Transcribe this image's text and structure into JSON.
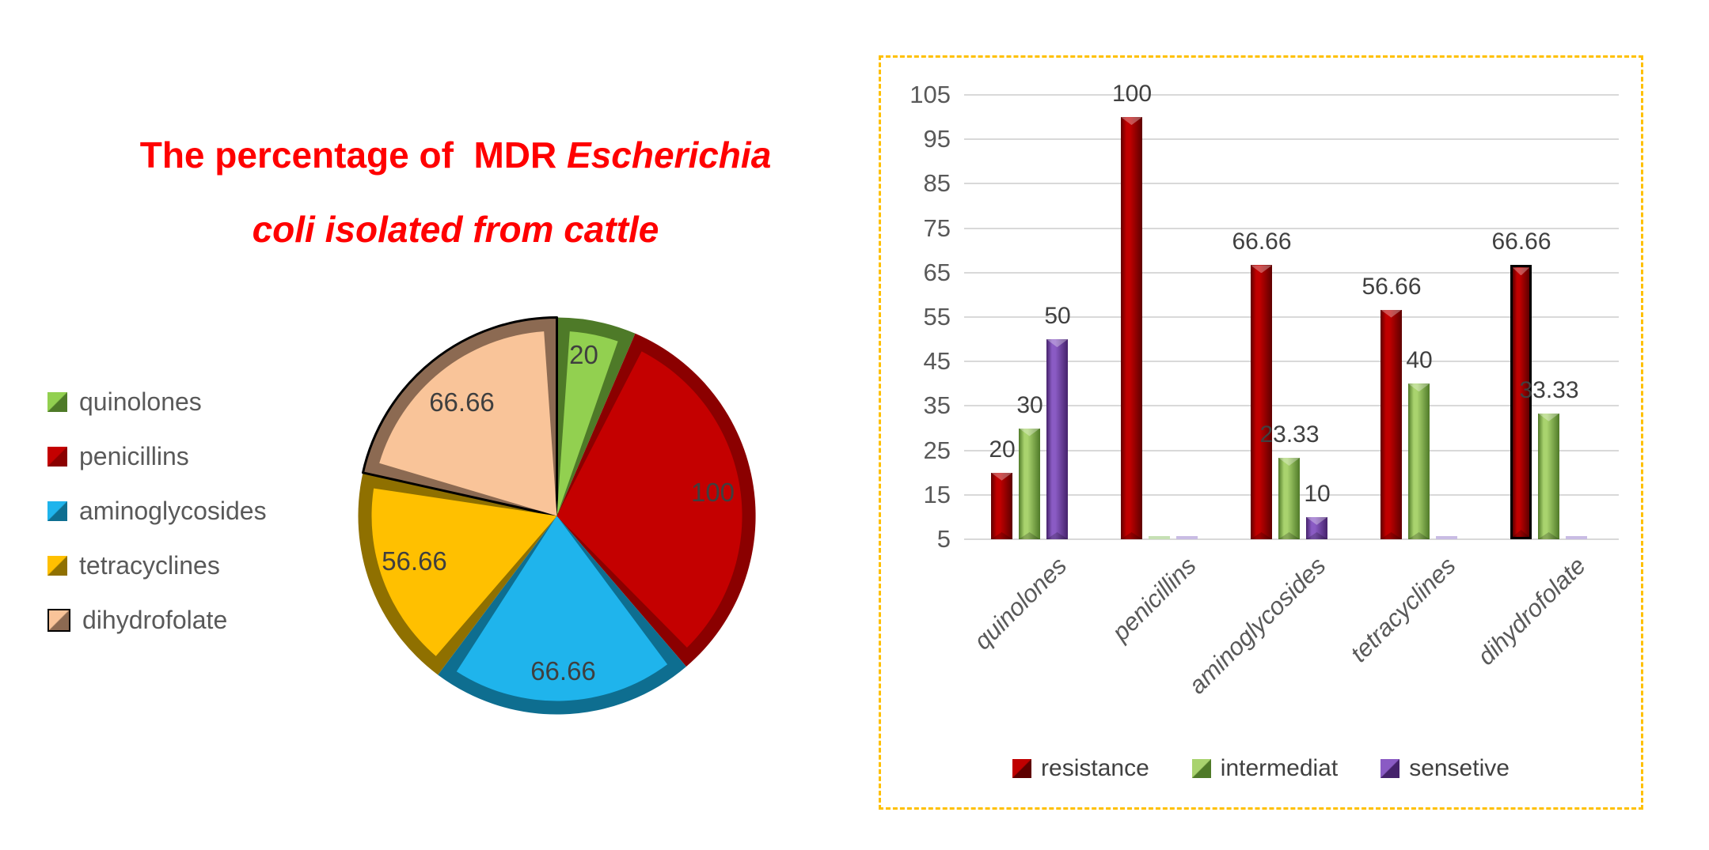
{
  "title": {
    "line1_regular": "The percentage of  MDR",
    "line1_italic": "Escherichia",
    "line2_italic": "coli isolated from cattle",
    "color": "#FF0000"
  },
  "palette": {
    "panel_border": "#FFC000",
    "gridline": "#D9D9D9",
    "axis_text": "#595959",
    "data_label_text": "#404040",
    "pie_label_text": "#3F3F3F",
    "title_text": "#FF0000"
  },
  "chart_data": [
    {
      "type": "pie",
      "title": "The percentage of  MDR Escherichia coli isolated from cattle",
      "categories": [
        "quinolones",
        "penicillins",
        "aminoglycosides",
        "tetracyclines",
        "dihydrofolate"
      ],
      "values": [
        20,
        100,
        66.66,
        56.66,
        66.66
      ],
      "data_labels": [
        "20",
        "100",
        "66.66",
        "56.66",
        "66.66"
      ],
      "colors": [
        {
          "main": "#92D050",
          "dark": "#4E7A28"
        },
        {
          "main": "#C40000",
          "dark": "#8B0000"
        },
        {
          "main": "#1FB4EC",
          "dark": "#0E6E90"
        },
        {
          "main": "#FFC000",
          "dark": "#8F7000"
        },
        {
          "main": "#F9C499",
          "dark": "#8C6A52"
        }
      ],
      "outlined_slice": "dihydrofolate",
      "legend_position": "left",
      "label_color": "#3F3F3F"
    },
    {
      "type": "bar",
      "categories": [
        "quinolones",
        "penicillins",
        "aminoglycosides",
        "tetracyclines",
        "dihydrofolate"
      ],
      "series": [
        {
          "name": "resistance",
          "values": [
            20,
            100,
            66.66,
            56.66,
            66.66
          ],
          "data_labels": [
            "20",
            "100",
            "66.66",
            "56.66",
            "66.66"
          ],
          "color_light": "#C00000",
          "color_dark": "#5E0000",
          "zero_tint": "#E8B3B3"
        },
        {
          "name": "intermediat",
          "values": [
            30,
            0,
            23.33,
            40,
            33.33
          ],
          "data_labels": [
            "30",
            "",
            "23.33",
            "40",
            "33.33"
          ],
          "color_light": "#A9D36E",
          "color_dark": "#4F7A28",
          "zero_tint": "#C6E0B4"
        },
        {
          "name": "sensetive",
          "values": [
            50,
            0,
            10,
            0,
            0
          ],
          "data_labels": [
            "50",
            "",
            "10",
            "",
            ""
          ],
          "color_light": "#8A5BC4",
          "color_dark": "#45226B",
          "zero_tint": "#C9BCE4"
        }
      ],
      "ylim": [
        5,
        105
      ],
      "yticks": [
        5,
        15,
        25,
        35,
        45,
        55,
        65,
        75,
        85,
        95,
        105
      ],
      "grid": true,
      "legend_position": "bottom",
      "outlined_bar": {
        "series": "resistance",
        "category": "dihydrofolate"
      }
    }
  ]
}
